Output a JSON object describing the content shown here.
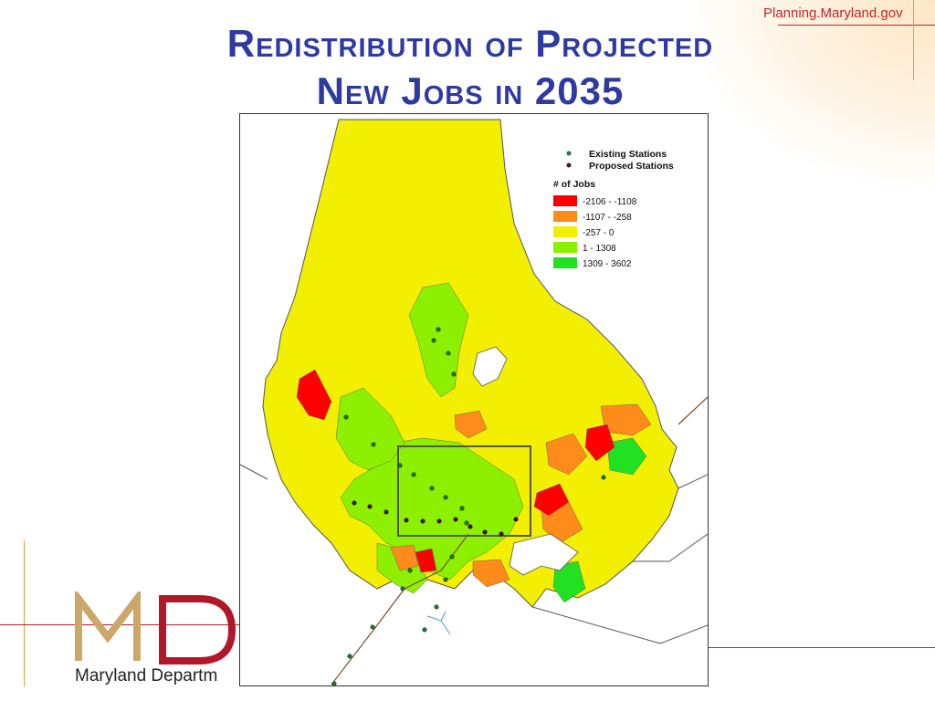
{
  "header": {
    "site_url": "Planning.Maryland.gov",
    "title_line1": "Redistribution of Projected",
    "title_line2": "New Jobs in 2035"
  },
  "logo": {
    "letters": "MD",
    "org_text": "Maryland Departm"
  },
  "map": {
    "legend": {
      "existing_label": "Existing Stations",
      "proposed_label": "Proposed Stations",
      "jobs_title": "# of Jobs",
      "classes": [
        {
          "label": "-2106 - -1108",
          "color": "#ff0000"
        },
        {
          "label": "-1107 - -258",
          "color": "#ff8c1a"
        },
        {
          "label": "-257 - 0",
          "color": "#f2f000"
        },
        {
          "label": "1 - 1308",
          "color": "#8cf000"
        },
        {
          "label": "1309 - 3602",
          "color": "#22e022"
        }
      ],
      "existing_color": "#1c7a3c",
      "proposed_color": "#4a1030"
    }
  },
  "colors": {
    "title": "#2e3aa0",
    "accent_red": "#c9202a",
    "accent_gold": "#e8a030"
  }
}
